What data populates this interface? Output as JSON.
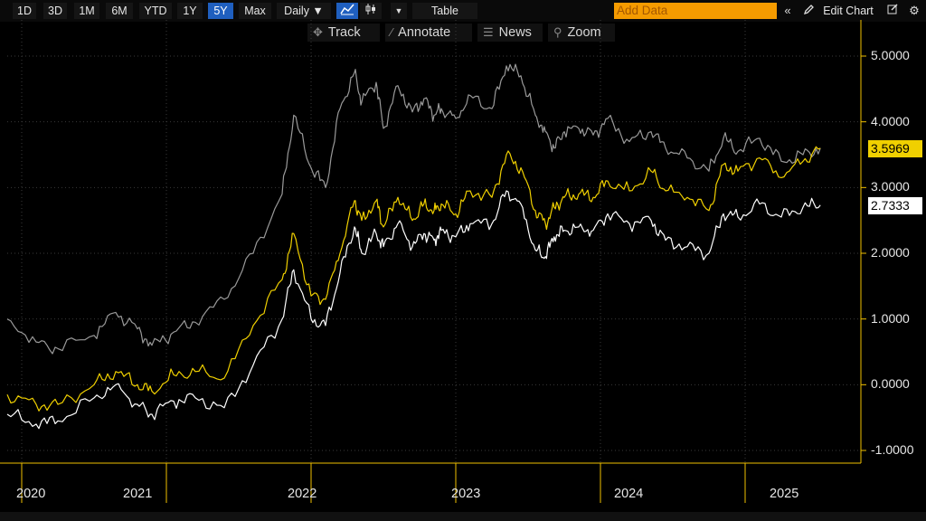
{
  "toolbar": {
    "ranges": [
      "1D",
      "3D",
      "1M",
      "6M",
      "YTD",
      "1Y",
      "5Y",
      "Max"
    ],
    "active_range": "5Y",
    "frequency": "Daily ▼",
    "table_label": "Table",
    "add_data_placeholder": "Add Data",
    "edit_chart_label": "Edit Chart"
  },
  "tools": {
    "track": "Track",
    "annotate": "Annotate",
    "news": "News",
    "zoom": "Zoom"
  },
  "colors": {
    "gray_series": "#9a9a9a",
    "yellow_series": "#f0d000",
    "white_series": "#ffffff",
    "axis": "#f0c000",
    "accent_orange": "#f59b00",
    "active_blue": "#1f5fbf"
  },
  "chart_data": {
    "type": "line",
    "x_ticks": [
      "2020",
      "2021",
      "2022",
      "2023",
      "2024",
      "2025"
    ],
    "y_ticks": [
      "5.0000",
      "4.0000",
      "3.0000",
      "2.0000",
      "1.0000",
      "0.0000",
      "-1.0000"
    ],
    "ylim": [
      -1.0,
      5.0
    ],
    "series": [
      {
        "color": "gray",
        "x": [
          2020.0,
          2020.2,
          2020.35,
          2020.6,
          2020.75,
          2020.9,
          2021.0,
          2021.15,
          2021.3,
          2021.5,
          2021.7,
          2021.9,
          2021.98,
          2022.1,
          2022.2,
          2022.3,
          2022.4,
          2022.45,
          2022.55,
          2022.6,
          2022.7,
          2022.8,
          2022.88,
          2022.95,
          2023.0,
          2023.1,
          2023.2,
          2023.35,
          2023.45,
          2023.55,
          2023.65,
          2023.72,
          2023.78,
          2023.85,
          2023.95,
          2024.05,
          2024.15,
          2024.3,
          2024.45,
          2024.55,
          2024.7,
          2024.85,
          2024.95,
          2025.05,
          2025.2,
          2025.35,
          2025.5,
          2025.62
        ],
        "values": [
          1.0,
          0.65,
          0.55,
          0.75,
          1.1,
          0.85,
          0.6,
          0.8,
          0.95,
          1.3,
          2.0,
          2.9,
          4.1,
          3.3,
          3.0,
          4.2,
          4.75,
          4.3,
          4.6,
          3.9,
          4.55,
          4.15,
          4.35,
          4.1,
          4.2,
          4.05,
          4.4,
          4.2,
          4.85,
          4.7,
          4.1,
          3.85,
          3.6,
          3.85,
          3.9,
          3.8,
          4.05,
          3.7,
          3.85,
          3.6,
          3.45,
          3.25,
          3.75,
          3.55,
          3.75,
          3.4,
          3.5,
          3.6
        ]
      },
      {
        "color": "yellow",
        "x": [
          2020.0,
          2020.2,
          2020.35,
          2020.6,
          2020.75,
          2020.9,
          2021.0,
          2021.15,
          2021.3,
          2021.5,
          2021.7,
          2021.9,
          2021.98,
          2022.1,
          2022.2,
          2022.3,
          2022.4,
          2022.45,
          2022.55,
          2022.6,
          2022.7,
          2022.8,
          2022.88,
          2022.95,
          2023.0,
          2023.1,
          2023.2,
          2023.35,
          2023.45,
          2023.55,
          2023.65,
          2023.72,
          2023.78,
          2023.85,
          2023.95,
          2024.05,
          2024.15,
          2024.3,
          2024.45,
          2024.55,
          2024.7,
          2024.85,
          2024.95,
          2025.05,
          2025.2,
          2025.35,
          2025.5,
          2025.62
        ],
        "values": [
          -0.15,
          -0.3,
          -0.3,
          0.0,
          0.2,
          0.0,
          -0.1,
          0.15,
          0.2,
          0.1,
          0.9,
          1.6,
          2.3,
          1.35,
          1.3,
          2.0,
          2.8,
          2.5,
          2.8,
          2.4,
          2.85,
          2.5,
          2.75,
          2.65,
          2.75,
          2.6,
          2.95,
          2.85,
          3.5,
          3.3,
          2.65,
          2.45,
          2.7,
          2.85,
          2.9,
          2.85,
          3.1,
          2.95,
          3.25,
          2.95,
          2.85,
          2.65,
          3.35,
          3.25,
          3.45,
          3.15,
          3.4,
          3.5969
        ]
      },
      {
        "color": "white",
        "x": [
          2020.0,
          2020.2,
          2020.35,
          2020.6,
          2020.75,
          2020.9,
          2021.0,
          2021.15,
          2021.3,
          2021.5,
          2021.7,
          2021.9,
          2021.98,
          2022.1,
          2022.2,
          2022.3,
          2022.4,
          2022.45,
          2022.55,
          2022.6,
          2022.7,
          2022.8,
          2022.88,
          2022.95,
          2023.0,
          2023.1,
          2023.2,
          2023.35,
          2023.45,
          2023.55,
          2023.65,
          2023.72,
          2023.78,
          2023.85,
          2023.95,
          2024.05,
          2024.15,
          2024.3,
          2024.45,
          2024.55,
          2024.7,
          2024.85,
          2024.95,
          2025.05,
          2025.2,
          2025.35,
          2025.5,
          2025.62
        ],
        "values": [
          -0.45,
          -0.6,
          -0.55,
          -0.2,
          0.0,
          -0.3,
          -0.45,
          -0.25,
          -0.2,
          -0.35,
          0.3,
          1.0,
          1.75,
          1.0,
          0.9,
          1.7,
          2.4,
          2.0,
          2.3,
          2.1,
          2.45,
          2.1,
          2.3,
          2.2,
          2.35,
          2.25,
          2.45,
          2.45,
          2.95,
          2.75,
          2.05,
          1.95,
          2.25,
          2.35,
          2.4,
          2.35,
          2.6,
          2.45,
          2.5,
          2.2,
          2.1,
          2.0,
          2.6,
          2.55,
          2.75,
          2.55,
          2.7,
          2.7333
        ]
      }
    ],
    "last_values": {
      "yellow": "3.5969",
      "white": "2.7333"
    },
    "grid": true
  }
}
